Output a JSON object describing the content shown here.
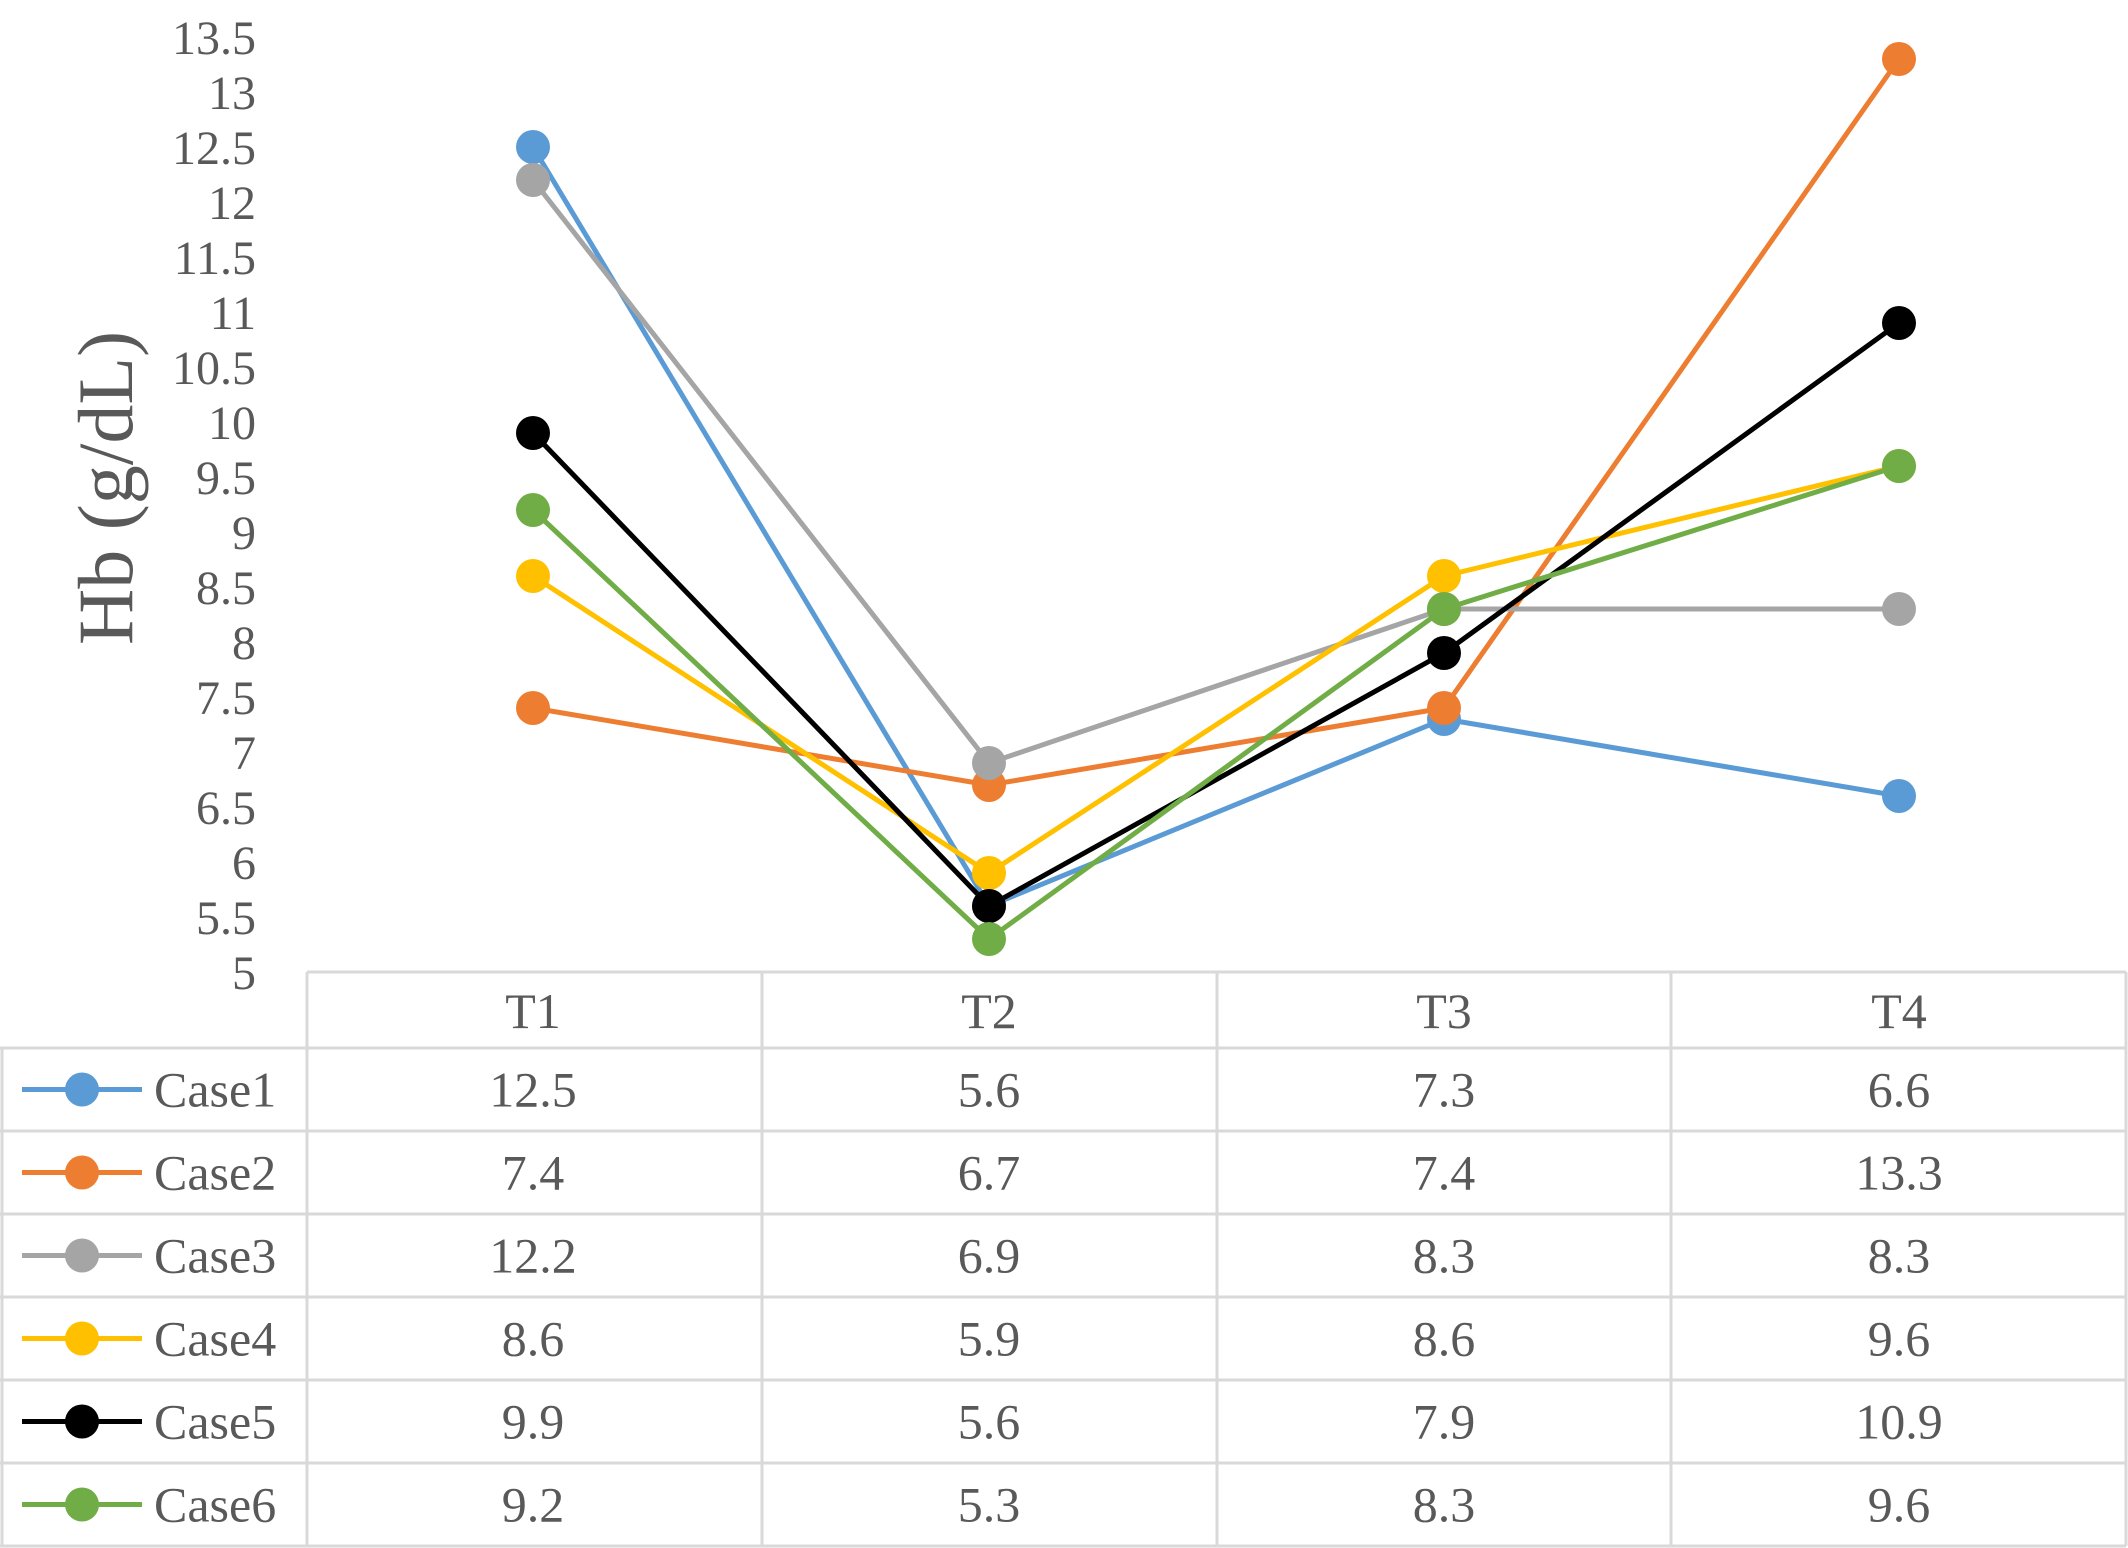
{
  "chart_data": {
    "type": "line",
    "ylabel": "Hb (g/dL)",
    "ylim": [
      5,
      13.5
    ],
    "yticks": [
      "5",
      "5.5",
      "6",
      "6.5",
      "7",
      "7.5",
      "8",
      "8.5",
      "9",
      "9.5",
      "10",
      "10.5",
      "11",
      "11.5",
      "12",
      "12.5",
      "13",
      "13.5"
    ],
    "categories": [
      "T1",
      "T2",
      "T3",
      "T4"
    ],
    "legend_placement": "data-table-rows",
    "grid": false,
    "series": [
      {
        "name": "Case1",
        "color": "#5B9BD5",
        "values": [
          12.5,
          5.6,
          7.3,
          6.6
        ],
        "labels": [
          "12.5",
          "5.6",
          "7.3",
          "6.6"
        ]
      },
      {
        "name": "Case2",
        "color": "#ED7D31",
        "values": [
          7.4,
          6.7,
          7.4,
          13.3
        ],
        "labels": [
          "7.4",
          "6.7",
          "7.4",
          "13.3"
        ]
      },
      {
        "name": "Case3",
        "color": "#A5A5A5",
        "values": [
          12.2,
          6.9,
          8.3,
          8.3
        ],
        "labels": [
          "12.2",
          "6.9",
          "8.3",
          "8.3"
        ]
      },
      {
        "name": "Case4",
        "color": "#FFC000",
        "values": [
          8.6,
          5.9,
          8.6,
          9.6
        ],
        "labels": [
          "8.6",
          "5.9",
          "8.6",
          "9.6"
        ]
      },
      {
        "name": "Case5",
        "color": "#000000",
        "values": [
          9.9,
          5.6,
          7.9,
          10.9
        ],
        "labels": [
          "9.9",
          "5.6",
          "7.9",
          "10.9"
        ]
      },
      {
        "name": "Case6",
        "color": "#70AD47",
        "values": [
          9.2,
          5.3,
          8.3,
          9.6
        ],
        "labels": [
          "9.2",
          "5.3",
          "8.3",
          "9.6"
        ]
      }
    ]
  }
}
